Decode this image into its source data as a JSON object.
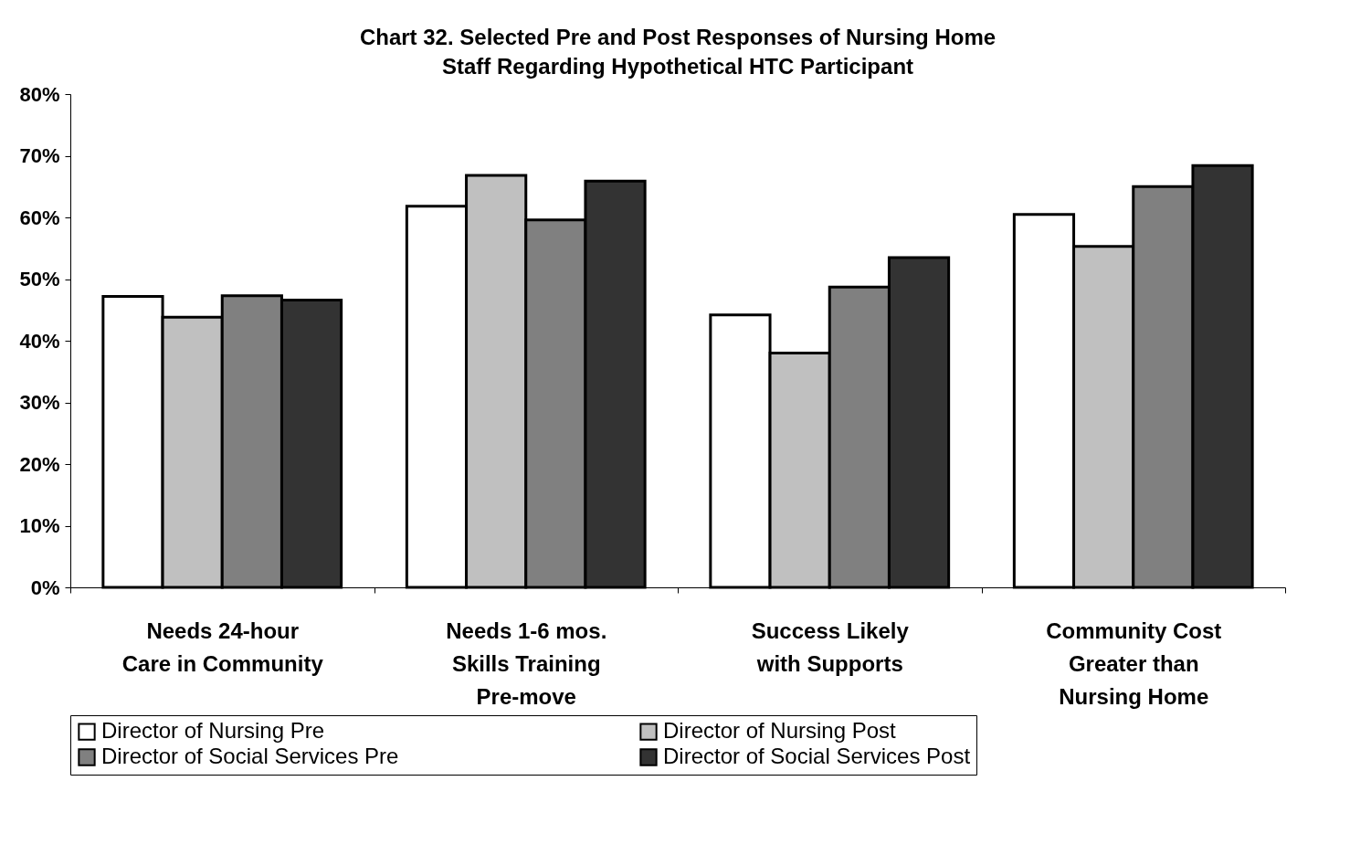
{
  "chart_data": {
    "type": "bar",
    "title": "Chart 32. Selected Pre and Post Responses of Nursing Home\nStaff Regarding Hypothetical HTC Participant",
    "categories": [
      "Needs 24-hour\nCare in Community",
      "Needs 1-6 mos.\nSkills Training\nPre-move",
      "Success Likely\nwith Supports",
      "Community Cost\nGreater than\nNursing Home"
    ],
    "series": [
      {
        "name": "Director of Nursing Pre",
        "color": "#ffffff",
        "values": [
          47.2,
          61.8,
          44.2,
          60.5
        ]
      },
      {
        "name": "Director of Nursing Post",
        "color": "#c0c0c0",
        "values": [
          43.8,
          66.8,
          38.0,
          55.3
        ]
      },
      {
        "name": "Director of Social Services Pre",
        "color": "#808080",
        "values": [
          47.3,
          59.6,
          48.7,
          65.0
        ]
      },
      {
        "name": "Director of Social Services Post",
        "color": "#333333",
        "values": [
          46.6,
          65.9,
          53.5,
          68.4
        ]
      }
    ],
    "ylim": [
      0,
      80
    ],
    "yticks": [
      {
        "value": 0,
        "label": "0%"
      },
      {
        "value": 10,
        "label": "10%"
      },
      {
        "value": 20,
        "label": "20%"
      },
      {
        "value": 30,
        "label": "30%"
      },
      {
        "value": 40,
        "label": "40%"
      },
      {
        "value": 50,
        "label": "50%"
      },
      {
        "value": 60,
        "label": "60%"
      },
      {
        "value": 70,
        "label": "70%"
      },
      {
        "value": 80,
        "label": "80%"
      }
    ],
    "grid": false,
    "legend": "bottom"
  }
}
